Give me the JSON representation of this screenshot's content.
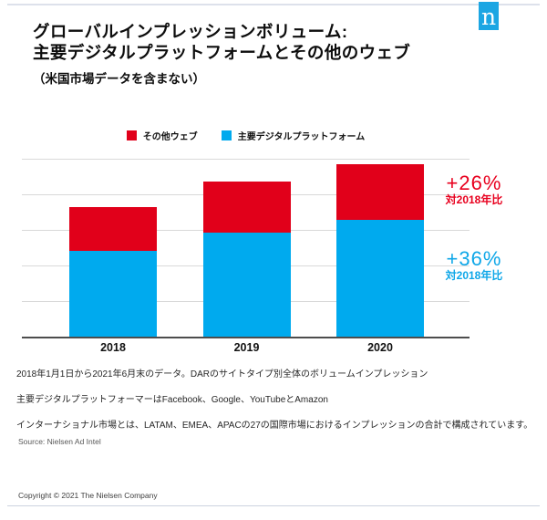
{
  "page": {
    "logo_letter": "n",
    "title_line1": "グローバルインプレッションボリューム:",
    "title_line2": "主要デジタルプラットフォームとその他のウェブ",
    "subtitle": "（米国市場データを含まない）",
    "footnotes": [
      "2018年1月1日から2021年6月末のデータ。DARのサイトタイプ別全体のボリュームインプレッション",
      "主要デジタルプラットフォーマーはFacebook、Google、YouTubeとAmazon",
      "インターナショナル市場とは、LATAM、EMEA、APACの27の国際市場におけるインプレッションの合計で構成されています。"
    ],
    "source": "Source: Nielsen Ad Intel",
    "copyright": "Copyright © 2021 The Nielsen Company"
  },
  "colors": {
    "logo_blue": "#1ca6e3",
    "bar_red": "#e1001a",
    "bar_blue": "#00aaee",
    "annotation_red": "#e8001e",
    "annotation_blue": "#0fa7e8",
    "gridline": "#d9d9d9",
    "axis": "#4d4d4d"
  },
  "chart_data": {
    "type": "bar",
    "stacked": true,
    "title": "グローバルインプレッションボリューム: 主要デジタルプラットフォームとその他のウェブ（米国市場データを含まない）",
    "categories": [
      "2018",
      "2019",
      "2020"
    ],
    "series": [
      {
        "name": "その他ウェブ",
        "color": "#e1001a",
        "stack_position": "top",
        "values": [
          24.4,
          28.6,
          30.8
        ]
      },
      {
        "name": "主要デジタルプラットフォーム",
        "color": "#00aaee",
        "stack_position": "bottom",
        "values": [
          48.7,
          59.0,
          66.4
        ]
      }
    ],
    "xlabel": "",
    "ylabel": "",
    "ylim": [
      0,
      100
    ],
    "gridline_step": 20,
    "y_tick_labels_visible": false,
    "legend_position": "top-center",
    "annotations": [
      {
        "text": "+26%",
        "subtext": "対2018年比",
        "applies_to": "その他ウェブ",
        "color": "#e8001e"
      },
      {
        "text": "+36%",
        "subtext": "対2018年比",
        "applies_to": "主要デジタルプラットフォーム",
        "color": "#0fa7e8"
      }
    ]
  }
}
